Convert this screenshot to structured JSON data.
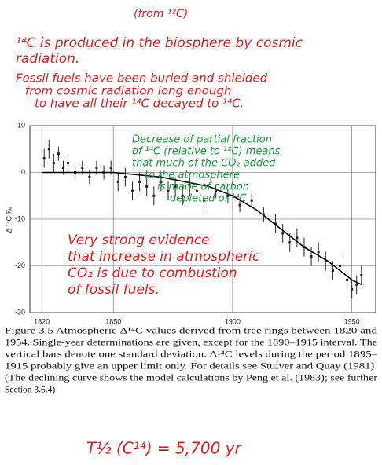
{
  "chart_data": {
    "type": "scatter",
    "y_label": "Δ ¹⁴C ‰",
    "xlim": [
      1815,
      1960
    ],
    "xticks": [
      1820,
      1850,
      1900,
      1950
    ],
    "ylim": [
      -30,
      10
    ],
    "yticks": [
      10,
      0,
      -10,
      -20,
      -30
    ],
    "grid": true,
    "series": [
      {
        "color": "#222222",
        "x": [
          1821,
          1823,
          1825,
          1827,
          1829,
          1831,
          1834,
          1837,
          1840,
          1843,
          1846,
          1849,
          1852,
          1855,
          1858,
          1861,
          1864,
          1867,
          1870,
          1873,
          1876,
          1879,
          1882,
          1885,
          1888,
          1893,
          1898,
          1903,
          1908,
          1913,
          1918,
          1921,
          1924,
          1927,
          1930,
          1933,
          1936,
          1939,
          1942,
          1945,
          1948,
          1950,
          1952,
          1954
        ],
        "values": [
          3,
          5,
          2,
          4,
          1,
          2,
          0,
          1,
          -1,
          1,
          0,
          1,
          -2,
          -1,
          -4,
          -2,
          -3,
          -5,
          -2,
          -4,
          -3,
          -5,
          -3,
          -4,
          -6,
          -4,
          -5,
          -7,
          -6,
          -9,
          -11,
          -13,
          -15,
          -14,
          -16,
          -18,
          -17,
          -19,
          -21,
          -20,
          -23,
          -25,
          -24,
          -22
        ],
        "errors": [
          2,
          2,
          2,
          1.5,
          1.5,
          1.5,
          1.5,
          1.5,
          1.5,
          1.5,
          1.5,
          1.5,
          2,
          2,
          2,
          2,
          2,
          2,
          2,
          2,
          2,
          2,
          2,
          2,
          2,
          1.5,
          1.5,
          1.5,
          1.5,
          1.5,
          2,
          2,
          2,
          2,
          2,
          2,
          2,
          2,
          2,
          2,
          2,
          2,
          2,
          2
        ]
      },
      {
        "color": "#000000",
        "style": "line",
        "x": [
          1820,
          1850,
          1870,
          1890,
          1900,
          1910,
          1920,
          1930,
          1940,
          1950,
          1954
        ],
        "values": [
          0,
          0,
          -1,
          -3,
          -5,
          -8,
          -12,
          -16,
          -19,
          -23,
          -24
        ]
      }
    ],
    "annotations": [
      {
        "color": "#d81e1e",
        "lines": [
          "(from ¹²C)"
        ]
      },
      {
        "color": "#d81e1e",
        "lines": [
          "¹⁴C is produced in the biosphere by cosmic",
          "radiation."
        ]
      },
      {
        "color": "#d81e1e",
        "lines": [
          "Fossil fuels have been buried and shielded",
          "from cosmic radiation long enough",
          "to have all their ¹⁴C decayed to ¹⁴C."
        ]
      },
      {
        "color": "#1a9a3a",
        "lines": [
          "Decrease of partial fraction",
          "of ¹⁴C (relative to ¹²C) means",
          "that much of the CO₂ added",
          "to the atmosphere",
          "is made of carbon",
          "depleted of ¹⁴C"
        ]
      },
      {
        "color": "#d81e1e",
        "lines": [
          "Very strong evidence",
          "that increase in atmospheric",
          "CO₂ is due to combustion",
          "of fossil fuels."
        ]
      },
      {
        "color": "#d81e1e",
        "lines": [
          "T½ (C¹⁴) = 5,700 yr"
        ]
      }
    ],
    "caption": [
      "Figure 3.5 Atmospheric Δ¹⁴C values derived from tree rings between 1820 and",
      "1954. Single-year determinations are given, except for the 1890–1915 interval. The",
      "vertical bars denote one standard deviation. Δ¹⁴C levels during the period 1895–",
      "1915 probably give an upper limit only. For details see Stuiver and Quay (1981).",
      "(The declining curve shows the model calculations by Peng et al. (1983); see further",
      "Section 3.6.4)"
    ]
  }
}
